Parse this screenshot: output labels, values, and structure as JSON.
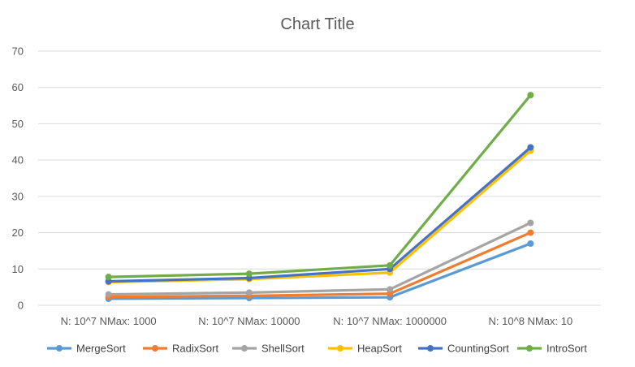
{
  "chart_data": {
    "type": "line",
    "title": "Chart Title",
    "xlabel": "",
    "ylabel": "",
    "categories": [
      "N: 10^7 NMax: 1000",
      "N: 10^7 NMax: 10000",
      "N: 10^7 NMax: 1000000",
      "N: 10^8 NMax: 10"
    ],
    "ylim": [
      0,
      70
    ],
    "yticks": [
      0,
      10,
      20,
      30,
      40,
      50,
      60,
      70
    ],
    "grid": true,
    "legend_position": "bottom",
    "series": [
      {
        "name": "MergeSort",
        "color": "#5B9BD5",
        "values": [
          1.8,
          2.0,
          2.2,
          17.0
        ]
      },
      {
        "name": "RadixSort",
        "color": "#ED7D31",
        "values": [
          2.3,
          2.6,
          3.2,
          20.0
        ]
      },
      {
        "name": "ShellSort",
        "color": "#A5A5A5",
        "values": [
          3.0,
          3.5,
          4.4,
          22.7
        ]
      },
      {
        "name": "HeapSort",
        "color": "#FFC000",
        "values": [
          6.4,
          7.2,
          9.0,
          42.6
        ]
      },
      {
        "name": "CountingSort",
        "color": "#4472C4",
        "values": [
          6.6,
          7.5,
          10.0,
          43.5
        ]
      },
      {
        "name": "IntroSort",
        "color": "#70AD47",
        "values": [
          7.8,
          8.7,
          11.0,
          57.9
        ]
      }
    ]
  }
}
